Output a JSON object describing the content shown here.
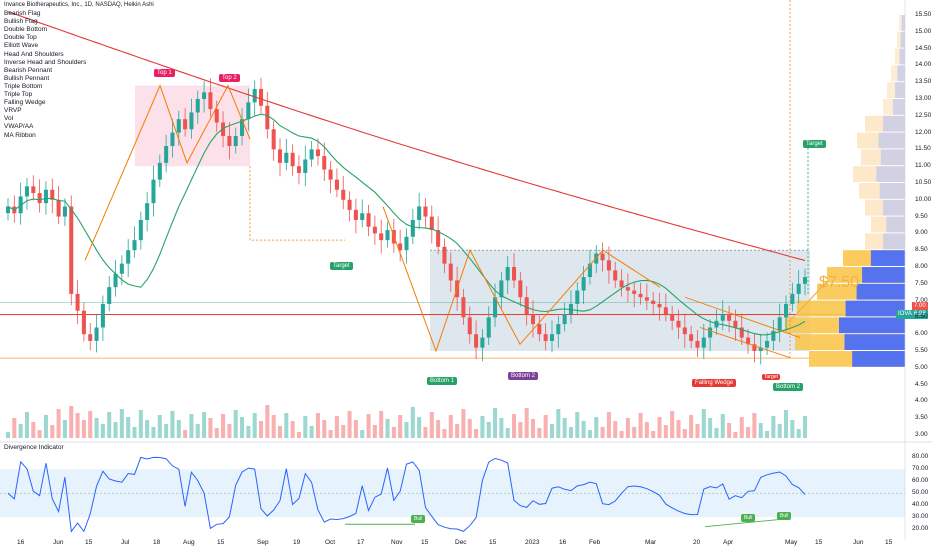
{
  "header": {
    "title": "Invance Biotherapeutics, Inc., 1D, NASDAQ, Heikin Ashi"
  },
  "indicator_list": [
    "Bearish Flag",
    "Bullish Flag",
    "Double Bottom",
    "Double Top",
    "Elliott Wave",
    "Head And Shoulders",
    "Inverse Head and Shoulders",
    "Bearish Pennant",
    "Bullish Pennant",
    "Triple Bottom",
    "Triple Top",
    "Falling Wedge",
    "VRVP",
    "Vol",
    "VWAP/AA",
    "MA Ribbon"
  ],
  "pattern_tags": {
    "top1": "Top 1",
    "top2": "Top 2",
    "target1": "Target",
    "bottom1": "Bottom 1",
    "bottom2a": "Bottom 2",
    "falling_wedge": "Falling Wedge",
    "bottom2b": "Bottom 2",
    "target2": "Target",
    "target3": "Target"
  },
  "price_annotation": "$7.50",
  "price_badges": {
    "current": "7.00",
    "ticker": "IOVA",
    "value": "6.98"
  },
  "divergence": {
    "title": "Divergence Indicator",
    "bull_labels": [
      "Bull",
      "Bull",
      "Bull"
    ]
  },
  "colors": {
    "up": "#26a69a",
    "down": "#ef5350",
    "ma_green": "#26a269",
    "ma_red": "#e53935",
    "pattern_orange": "#f57c00",
    "zone_blue": "#b0c4de",
    "osc_line": "#2962ff"
  },
  "chart_data": {
    "type": "candlestick",
    "y_axis_main": [
      "15.50",
      "15.00",
      "14.50",
      "14.00",
      "13.50",
      "13.00",
      "12.50",
      "12.00",
      "11.50",
      "11.00",
      "10.50",
      "10.00",
      "9.50",
      "9.00",
      "8.50",
      "8.00",
      "7.50",
      "7.00",
      "6.50",
      "6.00",
      "5.50",
      "5.00",
      "4.50",
      "4.00",
      "3.50",
      "3.00"
    ],
    "y_axis_osc": [
      "80.00",
      "70.00",
      "60.00",
      "50.00",
      "40.00",
      "30.00",
      "20.00"
    ],
    "x_axis": [
      "16",
      "Jun",
      "15",
      "Jul",
      "18",
      "Aug",
      "15",
      "Sep",
      "19",
      "Oct",
      "17",
      "Nov",
      "15",
      "Dec",
      "15",
      "2023",
      "16",
      "Feb",
      "Mar",
      "20",
      "Apr",
      "May",
      "15",
      "Jun",
      "15"
    ],
    "ylim": [
      3.0,
      15.5
    ],
    "closes": [
      9.8,
      9.6,
      10.1,
      10.4,
      10.2,
      9.9,
      10.3,
      10.0,
      9.5,
      9.8,
      7.2,
      6.7,
      6.0,
      5.8,
      6.2,
      6.9,
      7.4,
      7.8,
      8.1,
      8.5,
      8.8,
      9.4,
      9.9,
      10.6,
      11.1,
      11.6,
      12.0,
      12.4,
      12.1,
      12.6,
      13.0,
      13.2,
      12.7,
      12.3,
      11.9,
      11.6,
      11.9,
      12.4,
      12.9,
      13.3,
      12.8,
      12.1,
      11.5,
      11.1,
      11.4,
      11.0,
      10.8,
      11.2,
      11.5,
      11.3,
      10.9,
      10.6,
      10.3,
      10.0,
      9.7,
      9.4,
      9.6,
      9.2,
      9.0,
      8.8,
      9.1,
      8.7,
      8.5,
      8.9,
      9.4,
      9.8,
      9.5,
      9.1,
      8.6,
      8.1,
      7.6,
      7.1,
      6.5,
      6.0,
      5.6,
      5.9,
      6.5,
      7.1,
      7.6,
      8.0,
      7.6,
      7.1,
      6.6,
      6.3,
      6.0,
      5.8,
      6.0,
      6.3,
      6.6,
      6.9,
      7.3,
      7.7,
      8.1,
      8.4,
      8.2,
      7.9,
      7.6,
      7.4,
      7.3,
      7.2,
      7.1,
      7.0,
      6.9,
      6.8,
      6.6,
      6.4,
      6.2,
      6.0,
      5.8,
      5.6,
      5.9,
      6.2,
      6.4,
      6.6,
      6.4,
      6.2,
      5.9,
      5.7,
      5.5,
      5.6,
      5.8,
      6.1,
      6.5,
      6.9,
      7.2,
      7.5,
      7.7
    ]
  }
}
